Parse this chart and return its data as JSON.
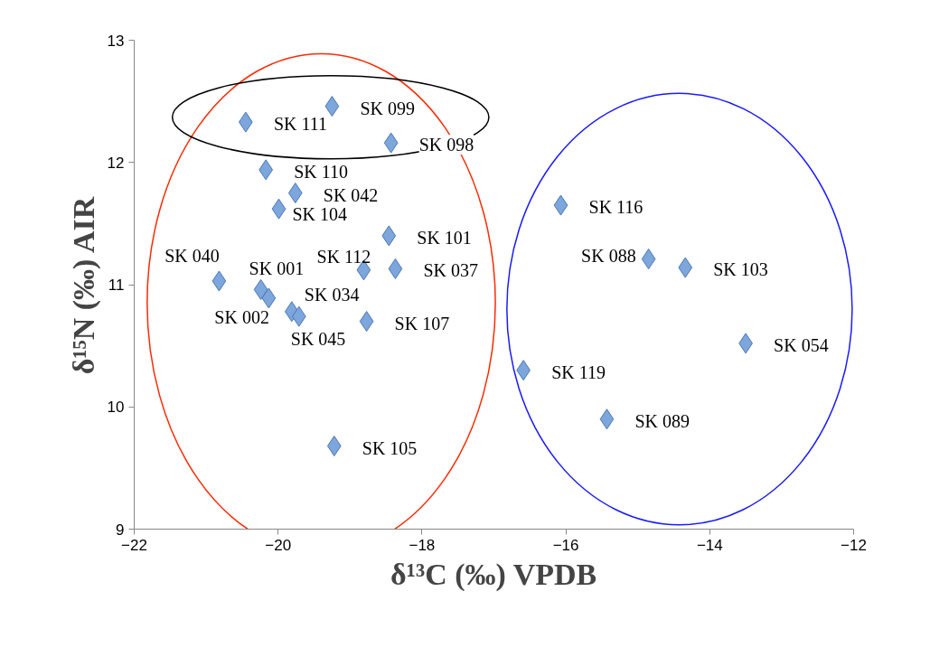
{
  "chart_data": {
    "type": "scatter",
    "xlabel": "δ¹³C (‰) VPDB",
    "ylabel": "δ¹⁵N (‰) AIR",
    "xlim": [
      -22,
      -12
    ],
    "xticks": [
      -22,
      -20,
      -18,
      -16,
      -14,
      -12
    ],
    "ylim": [
      9,
      13
    ],
    "yticks": [
      9,
      10,
      11,
      12,
      13
    ],
    "grid": false,
    "marker": "diamond",
    "series": [
      {
        "color": "#7ca6dc",
        "x": [
          -20.45,
          -19.25,
          -18.43,
          -20.17,
          -19.76,
          -19.99,
          -18.46,
          -20.82,
          -18.81,
          -18.37,
          -20.24,
          -20.13,
          -19.81,
          -19.71,
          -18.77,
          -19.22,
          -16.07,
          -14.85,
          -14.34,
          -13.5,
          -16.59,
          -15.43
        ],
        "values": [
          12.33,
          12.46,
          12.16,
          11.94,
          11.75,
          11.62,
          11.4,
          11.03,
          11.12,
          11.13,
          10.96,
          10.89,
          10.78,
          10.74,
          10.7,
          9.68,
          11.65,
          11.21,
          11.14,
          10.52,
          10.3,
          9.9
        ]
      }
    ],
    "annotations": [
      {
        "text": "SK 111",
        "x": -20.45,
        "y": 12.33
      },
      {
        "text": "SK 099",
        "x": -19.25,
        "y": 12.46
      },
      {
        "text": "SK 098",
        "x": -18.43,
        "y": 12.16
      },
      {
        "text": "SK 110",
        "x": -20.17,
        "y": 11.94
      },
      {
        "text": "SK 042",
        "x": -19.76,
        "y": 11.75
      },
      {
        "text": "SK 104",
        "x": -19.99,
        "y": 11.62
      },
      {
        "text": "SK 101",
        "x": -18.46,
        "y": 11.4
      },
      {
        "text": "SK 040",
        "x": -20.82,
        "y": 11.03
      },
      {
        "text": "SK 112",
        "x": -18.81,
        "y": 11.12
      },
      {
        "text": "SK 037",
        "x": -18.37,
        "y": 11.13
      },
      {
        "text": "SK 001",
        "x": -20.24,
        "y": 10.96
      },
      {
        "text": "SK 002",
        "x": -20.13,
        "y": 10.89
      },
      {
        "text": "SK 034",
        "x": -19.81,
        "y": 10.78
      },
      {
        "text": "SK 045",
        "x": -19.71,
        "y": 10.74
      },
      {
        "text": "SK 107",
        "x": -18.77,
        "y": 10.7
      },
      {
        "text": "SK 105",
        "x": -19.22,
        "y": 9.68
      },
      {
        "text": "SK 116",
        "x": -16.07,
        "y": 11.65
      },
      {
        "text": "SK 088",
        "x": -14.85,
        "y": 11.21
      },
      {
        "text": "SK 103",
        "x": -14.34,
        "y": 11.14
      },
      {
        "text": "SK 054",
        "x": -13.5,
        "y": 10.52
      },
      {
        "text": "SK 119",
        "x": -16.59,
        "y": 10.3
      },
      {
        "text": "SK 089",
        "x": -15.43,
        "y": 9.9
      }
    ]
  }
}
